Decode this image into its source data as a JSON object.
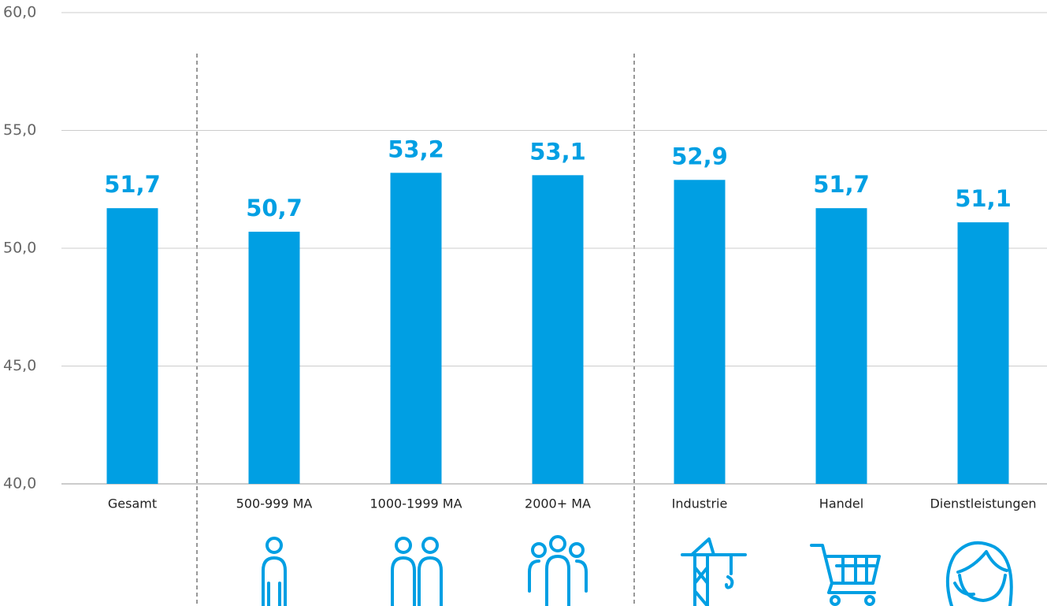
{
  "chart_data": {
    "type": "bar",
    "categories": [
      "Gesamt",
      "500-999 MA",
      "1000-1999 MA",
      "2000+ MA",
      "Industrie",
      "Handel",
      "Dienstleistungen"
    ],
    "values": [
      51.7,
      50.7,
      53.2,
      53.1,
      52.9,
      51.7,
      51.1
    ],
    "value_labels": [
      "51,7",
      "50,7",
      "53,2",
      "53,1",
      "52,9",
      "51,7",
      "51,1"
    ],
    "color": "#009fe3",
    "ylim": [
      40,
      60
    ],
    "yticks": [
      {
        "value": 40,
        "label": "40,0"
      },
      {
        "value": 45,
        "label": "45,0"
      },
      {
        "value": 50,
        "label": "50,0"
      },
      {
        "value": 55,
        "label": "55,0"
      },
      {
        "value": 60,
        "label": "60,0"
      }
    ],
    "grid": true
  }
}
